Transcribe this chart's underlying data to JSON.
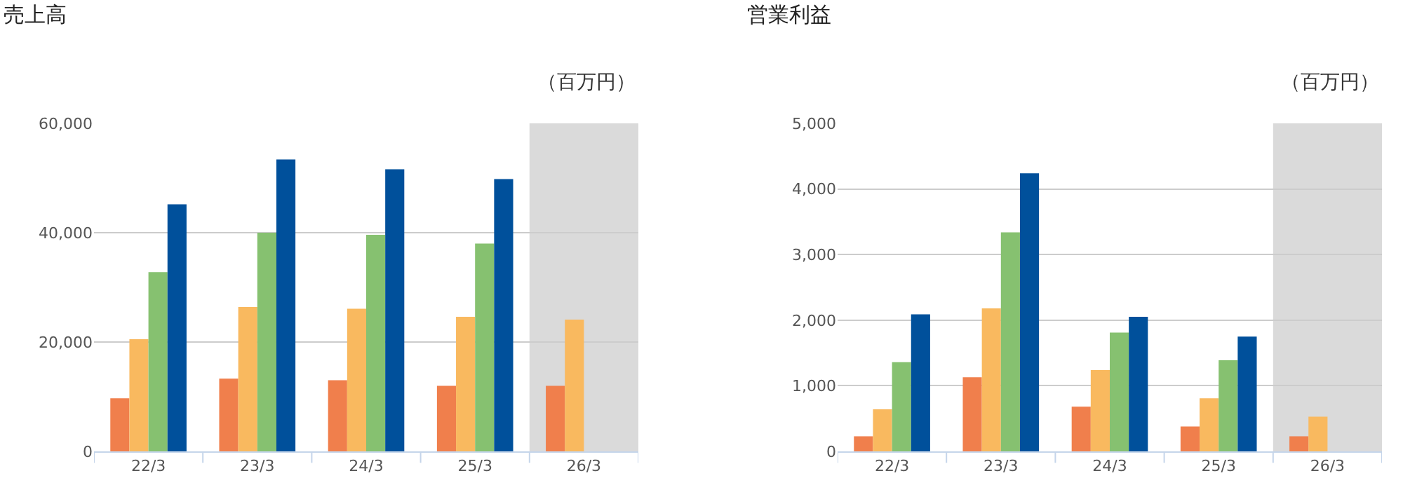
{
  "chart_data": [
    {
      "type": "bar",
      "title": "売上高",
      "annotations": [
        "（百万円）"
      ],
      "categories": [
        "22/3",
        "23/3",
        "24/3",
        "25/3",
        "26/3"
      ],
      "series": [
        {
          "color": "#f07f4c",
          "values": [
            9700,
            13300,
            13000,
            12000,
            12000
          ]
        },
        {
          "color": "#f9b95f",
          "values": [
            20500,
            26400,
            26100,
            24600,
            24100
          ]
        },
        {
          "color": "#86c170",
          "values": [
            32800,
            40000,
            39600,
            38000,
            null
          ]
        },
        {
          "color": "#00509b",
          "values": [
            45200,
            53400,
            51600,
            49800,
            null
          ]
        }
      ],
      "ylim": [
        0,
        60000
      ],
      "yticks": [
        {
          "value": 0,
          "label": "0"
        },
        {
          "value": 20000,
          "label": "20,000"
        },
        {
          "value": 40000,
          "label": "40,000"
        },
        {
          "value": 60000,
          "label": "60,000"
        }
      ],
      "grid": "y",
      "bands": [
        {
          "axis": "x",
          "from": "26/3",
          "to": "26/3",
          "color": "#dadada"
        }
      ]
    },
    {
      "type": "bar",
      "title": "営業利益",
      "annotations": [
        "（百万円）"
      ],
      "categories": [
        "22/3",
        "23/3",
        "24/3",
        "25/3",
        "26/3"
      ],
      "series": [
        {
          "color": "#f07f4c",
          "values": [
            230,
            1130,
            680,
            380,
            230
          ]
        },
        {
          "color": "#f9b95f",
          "values": [
            640,
            2180,
            1240,
            810,
            530
          ]
        },
        {
          "color": "#86c170",
          "values": [
            1360,
            3340,
            1810,
            1390,
            null
          ]
        },
        {
          "color": "#00509b",
          "values": [
            2090,
            4240,
            2050,
            1750,
            null
          ]
        }
      ],
      "ylim": [
        0,
        5000
      ],
      "yticks": [
        {
          "value": 0,
          "label": "0"
        },
        {
          "value": 1000,
          "label": "1,000"
        },
        {
          "value": 2000,
          "label": "2,000"
        },
        {
          "value": 3000,
          "label": "3,000"
        },
        {
          "value": 4000,
          "label": "4,000"
        },
        {
          "value": 5000,
          "label": "5,000"
        }
      ],
      "grid": "y",
      "bands": [
        {
          "axis": "x",
          "from": "26/3",
          "to": "26/3",
          "color": "#dadada"
        }
      ]
    }
  ]
}
